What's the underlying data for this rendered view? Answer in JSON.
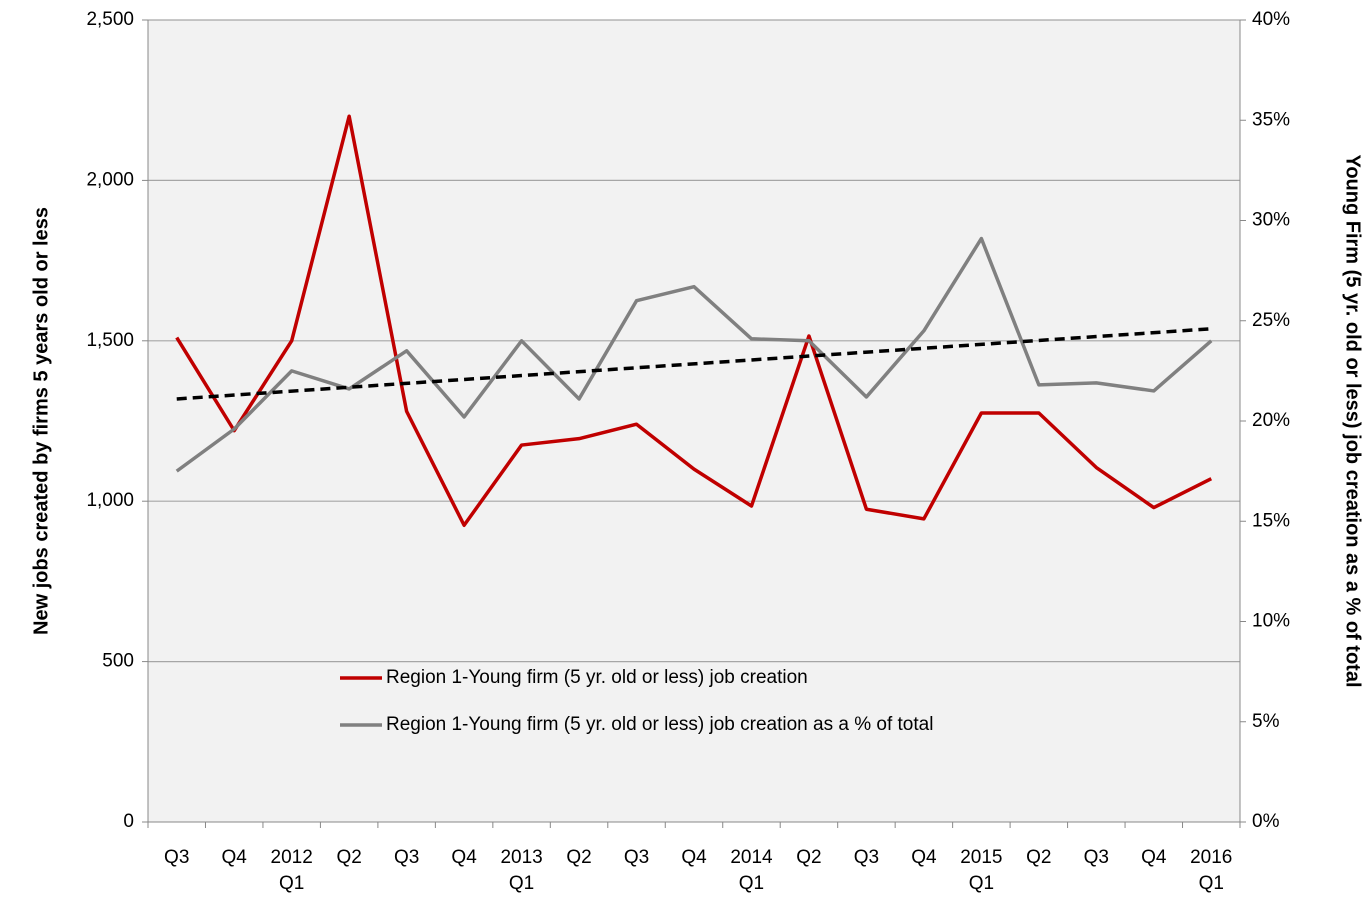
{
  "chart_data": {
    "type": "line",
    "y_label": "New jobs created by firms 5 years old or less",
    "y2_label": "Young Firm (5 yr. old or less) job creation as a % of total",
    "categories": [
      [
        "Q3"
      ],
      [
        "Q4"
      ],
      [
        "2012",
        "Q1"
      ],
      [
        "Q2"
      ],
      [
        "Q3"
      ],
      [
        "Q4"
      ],
      [
        "2013",
        "Q1"
      ],
      [
        "Q2"
      ],
      [
        "Q3"
      ],
      [
        "Q4"
      ],
      [
        "2014",
        "Q1"
      ],
      [
        "Q2"
      ],
      [
        "Q3"
      ],
      [
        "Q4"
      ],
      [
        "2015",
        "Q1"
      ],
      [
        "Q2"
      ],
      [
        "Q3"
      ],
      [
        "Q4"
      ],
      [
        "2016",
        "Q1"
      ]
    ],
    "series": [
      {
        "name": "Region 1-Young firm (5 yr. old or less) job creation",
        "color": "#c00000",
        "axis": "y",
        "values": [
          1510,
          1220,
          1500,
          2200,
          1280,
          925,
          1175,
          1195,
          1240,
          1100,
          985,
          1515,
          975,
          945,
          1275,
          1275,
          1105,
          980,
          1070
        ]
      },
      {
        "name": "Region 1-Young firm (5 yr. old or less) job creation as a % of total",
        "color": "#808080",
        "axis": "y2",
        "values": [
          17.5,
          19.6,
          22.5,
          21.6,
          23.5,
          20.2,
          24.0,
          21.1,
          26.0,
          26.7,
          24.1,
          24.0,
          21.2,
          24.5,
          29.1,
          21.8,
          21.9,
          21.5,
          24.0
        ]
      }
    ],
    "trendline": {
      "color": "#000000",
      "axis": "y2",
      "start": 21.1,
      "end": 24.6
    },
    "ylim": [
      0,
      2500
    ],
    "yticks": [
      0,
      500,
      {
        "value": 1000,
        "label": "1,000"
      },
      {
        "value": 1500,
        "label": "1,500"
      },
      {
        "value": 2000,
        "label": "2,000"
      },
      {
        "value": 2500,
        "label": "2,500"
      }
    ],
    "y2lim": [
      0,
      40
    ],
    "y2ticks": [
      {
        "value": 0,
        "label": "0%"
      },
      {
        "value": 5,
        "label": "5%"
      },
      {
        "value": 10,
        "label": "10%"
      },
      {
        "value": 15,
        "label": "15%"
      },
      {
        "value": 20,
        "label": "20%"
      },
      {
        "value": 25,
        "label": "25%"
      },
      {
        "value": 30,
        "label": "30%"
      },
      {
        "value": 35,
        "label": "35%"
      },
      {
        "value": 40,
        "label": "40%"
      }
    ],
    "grid": true,
    "legend": "bottom-left"
  }
}
